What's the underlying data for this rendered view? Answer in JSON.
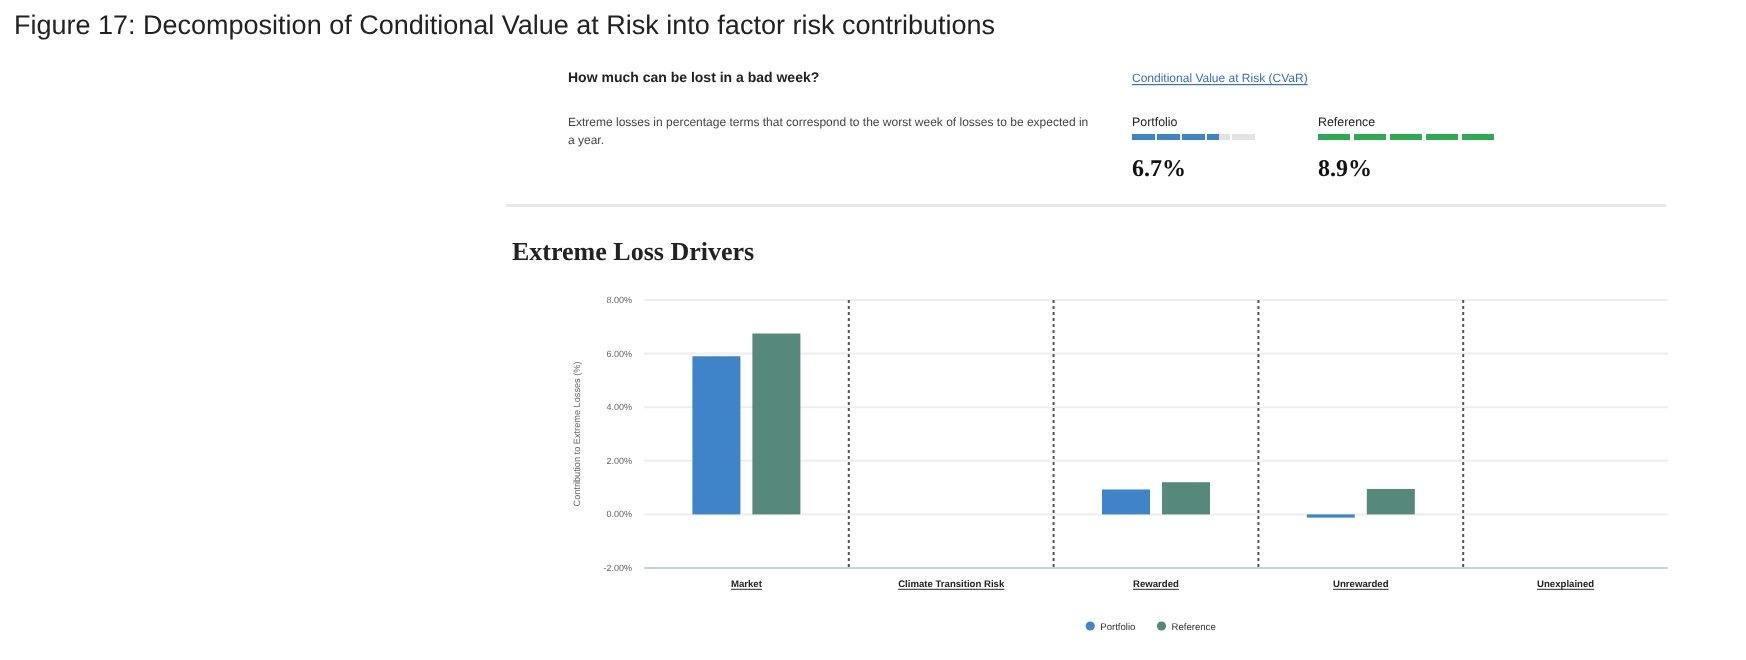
{
  "chart_data": {
    "type": "bar",
    "title": "Figure 17: Decomposition of Conditional Value at Risk into factor risk contributions",
    "subtitle": "Extreme Loss Drivers",
    "annotations": [
      "How much can be lost in a bad week?",
      "Extreme losses in percentage terms that correspond to the worst week of losses to be expected in a year.",
      "Conditional Value at Risk (CVaR)",
      "Portfolio",
      "Reference",
      "6.7%",
      "8.9%"
    ],
    "categories": [
      "Market",
      "Climate Transition Risk",
      "Rewarded",
      "Unrewarded",
      "Unexplained"
    ],
    "series": [
      {
        "name": "Portfolio",
        "color": "#3f83c8",
        "values": [
          5.9,
          null,
          0.93,
          -0.12,
          null
        ]
      },
      {
        "name": "Reference",
        "color": "#56887c",
        "values": [
          6.75,
          null,
          1.2,
          0.95,
          null
        ]
      }
    ],
    "ylabel": "Contribution to Extreme Losses (%)",
    "ylim": [
      -2,
      8
    ],
    "yticks": [
      {
        "value": -2,
        "label": "-2.00%"
      },
      {
        "value": 0,
        "label": "0.00%"
      },
      {
        "value": 2,
        "label": "2.00%"
      },
      {
        "value": 4,
        "label": "4.00%"
      },
      {
        "value": 6,
        "label": "6.00%"
      },
      {
        "value": 8,
        "label": "8.00%"
      }
    ],
    "grid": "y",
    "legend": "bottom"
  }
}
